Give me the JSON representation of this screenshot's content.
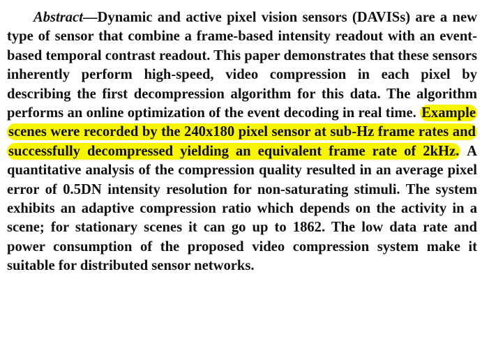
{
  "abstract": {
    "label": "Abstract",
    "dash": "—",
    "text_before_highlight": "Dynamic and active pixel vision sensors (DAVISs) are a new type of sensor that combine a frame-based intensity readout with an event-based temporal contrast readout. This paper demonstrates that these sensors inherently perform high-speed, video compression in each pixel by describing the first decompression algorithm for this data. The algorithm performs an online optimization of the event decoding in real time. ",
    "highlighted_text": "Example scenes were recorded by the 240x180 pixel sensor at sub-Hz frame rates and successfully decompressed yielding an equivalent frame rate of 2kHz.",
    "text_after_highlight": " A quantitative analysis of the compression quality resulted in an average pixel error of 0.5DN intensity resolution for non-saturating stimuli. The system exhibits an adaptive compression ratio which depends on the activity in a scene; for stationary scenes it can go up to 1862. The low data rate and power consumption of the proposed video compression system make it suitable for distributed sensor networks.",
    "highlight_color": "#f8f500",
    "text_color": "#111111"
  }
}
